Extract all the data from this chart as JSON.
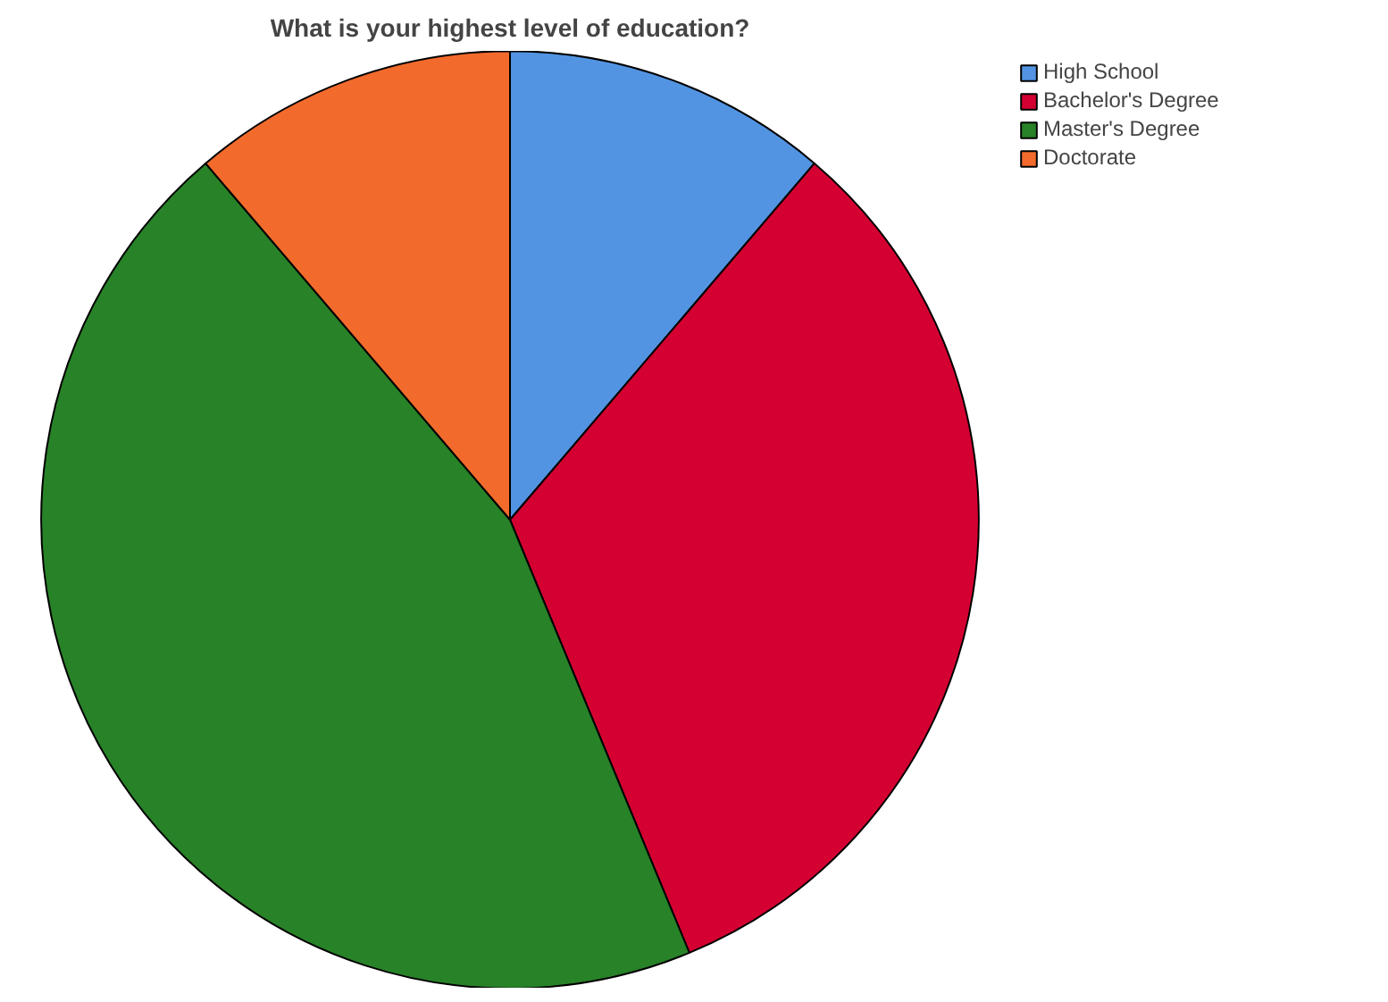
{
  "chart_data": {
    "type": "pie",
    "title": "What is your highest level of education?",
    "categories": [
      "High School",
      "Bachelor's Degree",
      "Master's Degree",
      "Doctorate"
    ],
    "values": [
      11.25,
      32.5,
      45,
      11.25
    ],
    "colors": [
      "#5294e2",
      "#d50032",
      "#288228",
      "#f26b2c"
    ],
    "legend": "top right"
  }
}
